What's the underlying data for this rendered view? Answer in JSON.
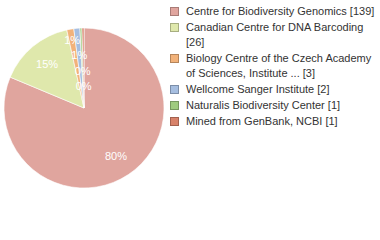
{
  "chart_data": {
    "type": "pie",
    "categories": [
      "Centre for Biodiversity Genomics [139]",
      "Canadian Centre for DNA Barcoding [26]",
      "Biology Centre of the Czech Academy of Sciences, Institute ... [3]",
      "Wellcome Sanger Institute [2]",
      "Naturalis Biodiversity Center [1]",
      "Mined from GenBank, NCBI [1]"
    ],
    "values": [
      80,
      15,
      1.4,
      1.2,
      0.4,
      0.4
    ],
    "value_labels": [
      "80%",
      "15%",
      "1%",
      "1%",
      "0%",
      "0%"
    ],
    "colors": [
      "#e0a59e",
      "#dfe8ac",
      "#f2b27a",
      "#a6bee0",
      "#9fcb7f",
      "#d8826a"
    ],
    "data_labels": true,
    "legend": "right"
  }
}
